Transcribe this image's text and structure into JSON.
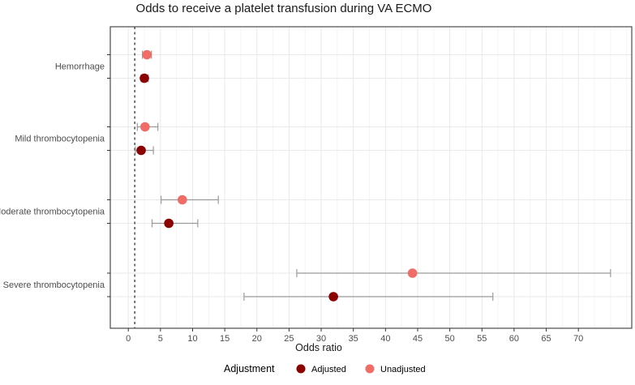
{
  "chart_data": {
    "type": "scatter",
    "subtype": "forest-plot-dot-whisker",
    "title": "Odds to receive a platelet transfusion during VA ECMO",
    "xlabel": "Odds ratio",
    "ylabel": "",
    "xlim": [
      -2.8,
      78.3
    ],
    "x_major_ticks": [
      0,
      5,
      10,
      15,
      20,
      25,
      30,
      35,
      40,
      45,
      50,
      55,
      60,
      65,
      70
    ],
    "x_minor_step": 2.5,
    "reference_line_x": 1,
    "reference_line_style": "dashed",
    "grid": true,
    "legend_position": "bottom",
    "categories": [
      "Hemorrhage",
      "Mild thrombocytopenia",
      "Moderate thrombocytopenia",
      "Severe thrombocytopenia"
    ],
    "series": [
      {
        "name": "Unadjusted",
        "color": "#F06C66",
        "values": [
          {
            "category": "Hemorrhage",
            "or": 2.9,
            "ci_low": 2.2,
            "ci_high": 3.6
          },
          {
            "category": "Mild thrombocytopenia",
            "or": 2.6,
            "ci_low": 1.4,
            "ci_high": 4.6
          },
          {
            "category": "Moderate thrombocytopenia",
            "or": 8.4,
            "ci_low": 5.1,
            "ci_high": 14.0
          },
          {
            "category": "Severe thrombocytopenia",
            "or": 44.2,
            "ci_low": 26.2,
            "ci_high": 75.0
          }
        ]
      },
      {
        "name": "Adjusted",
        "color": "#8B0000",
        "values": [
          {
            "category": "Hemorrhage",
            "or": 2.5,
            "ci_low": 2.0,
            "ci_high": 3.1
          },
          {
            "category": "Mild thrombocytopenia",
            "or": 2.0,
            "ci_low": 1.1,
            "ci_high": 3.9
          },
          {
            "category": "Moderate thrombocytopenia",
            "or": 6.3,
            "ci_low": 3.7,
            "ci_high": 10.8
          },
          {
            "category": "Severe thrombocytopenia",
            "or": 31.9,
            "ci_low": 18.0,
            "ci_high": 56.7
          }
        ]
      }
    ],
    "legend": {
      "title": "Adjustment",
      "entries": [
        {
          "label": "Adjusted",
          "color": "#8B0000"
        },
        {
          "label": "Unadjusted",
          "color": "#F06C66"
        }
      ]
    },
    "colors": {
      "panel_border": "#4a4a4a",
      "grid_major": "#e9e9e9",
      "grid_minor": "#f4f4f4",
      "error_bar": "#9b9b9b",
      "tick_label": "#4d4d4d",
      "reference_line": "#333333"
    }
  }
}
